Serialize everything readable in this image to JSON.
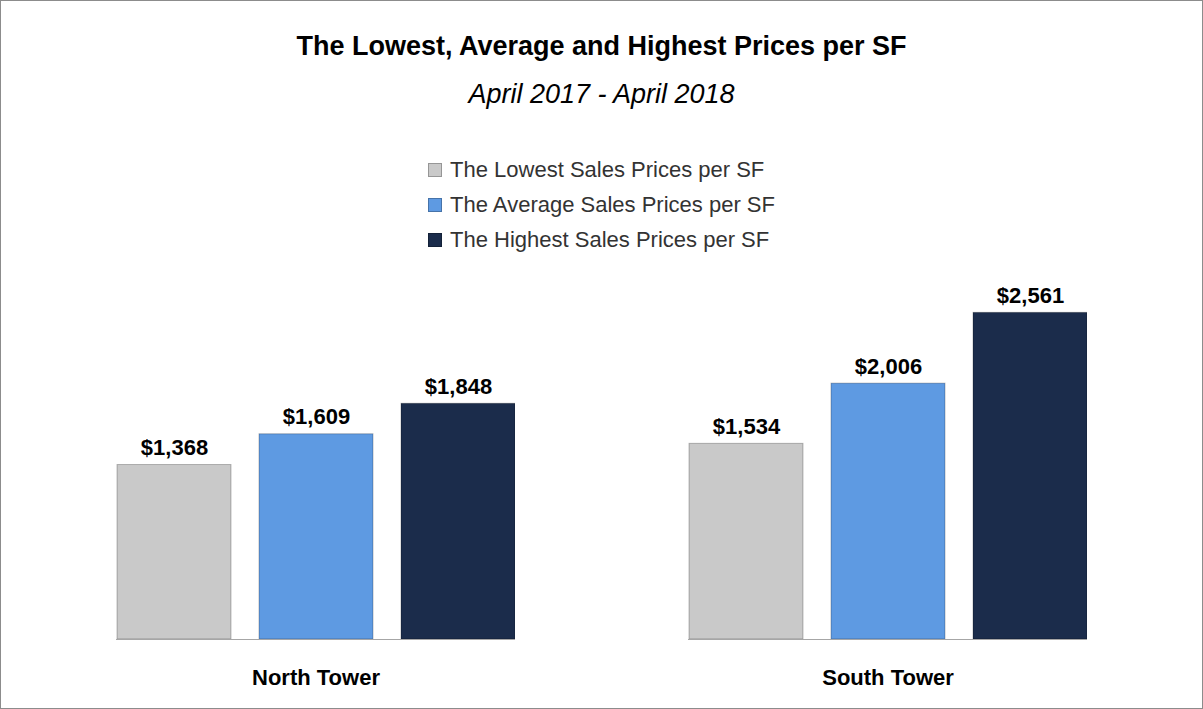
{
  "chart_data": {
    "type": "bar",
    "title": "The Lowest, Average and Highest Prices per SF",
    "subtitle": "April 2017 - April 2018",
    "categories": [
      "North Tower",
      "South Tower"
    ],
    "series": [
      {
        "name": "The Lowest Sales Prices per SF",
        "color": "#c9c9c9",
        "values": [
          1368,
          1534
        ],
        "value_labels": [
          "$1,368",
          "$1,534"
        ]
      },
      {
        "name": "The Average Sales Prices per SF",
        "color": "#5e9ae2",
        "values": [
          1609,
          2006
        ],
        "value_labels": [
          "$1,609",
          "$2,006"
        ]
      },
      {
        "name": "The Highest Sales Prices per SF",
        "color": "#1b2c4b",
        "values": [
          1848,
          2561
        ],
        "value_labels": [
          "$1,848",
          "$2,561"
        ]
      }
    ],
    "ylim": [
      0,
      2650
    ],
    "data_labels": true,
    "tick_labels": "x",
    "legend": "top",
    "grid": false
  }
}
